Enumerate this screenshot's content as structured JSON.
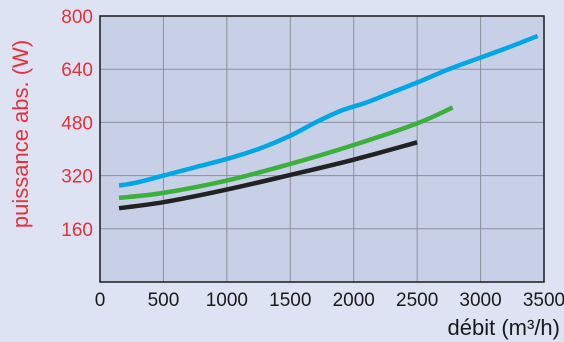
{
  "chart_data": {
    "type": "line",
    "ylabel": "puissance abs. (W)",
    "xlabel": "débit (m³/h)",
    "x_ticks": [
      "0",
      "500",
      "1000",
      "1500",
      "2000",
      "2500",
      "3000",
      "3500"
    ],
    "y_ticks": [
      "160",
      "320",
      "480",
      "640",
      "800"
    ],
    "xlim": [
      0,
      3500
    ],
    "ylim": [
      0,
      800
    ],
    "grid": true,
    "series": [
      {
        "color": "#00a6e6",
        "points": [
          [
            150,
            290
          ],
          [
            300,
            300
          ],
          [
            500,
            320
          ],
          [
            750,
            345
          ],
          [
            1000,
            370
          ],
          [
            1250,
            400
          ],
          [
            1500,
            440
          ],
          [
            1700,
            480
          ],
          [
            1900,
            515
          ],
          [
            2100,
            540
          ],
          [
            2300,
            570
          ],
          [
            2500,
            600
          ],
          [
            2750,
            640
          ],
          [
            3000,
            675
          ],
          [
            3250,
            710
          ],
          [
            3450,
            740
          ]
        ]
      },
      {
        "color": "#3bb03b",
        "points": [
          [
            150,
            253
          ],
          [
            500,
            268
          ],
          [
            1000,
            305
          ],
          [
            1500,
            355
          ],
          [
            2000,
            412
          ],
          [
            2500,
            477
          ],
          [
            2780,
            525
          ]
        ]
      },
      {
        "color": "#222222",
        "points": [
          [
            150,
            222
          ],
          [
            500,
            240
          ],
          [
            1000,
            278
          ],
          [
            1500,
            322
          ],
          [
            2000,
            368
          ],
          [
            2500,
            420
          ]
        ]
      }
    ],
    "colors": {
      "y_axis_text": "#e8303c",
      "plot_background": "#c8d0e8",
      "grid": "#8a8f9c",
      "page_background": "#dde3f2"
    }
  }
}
